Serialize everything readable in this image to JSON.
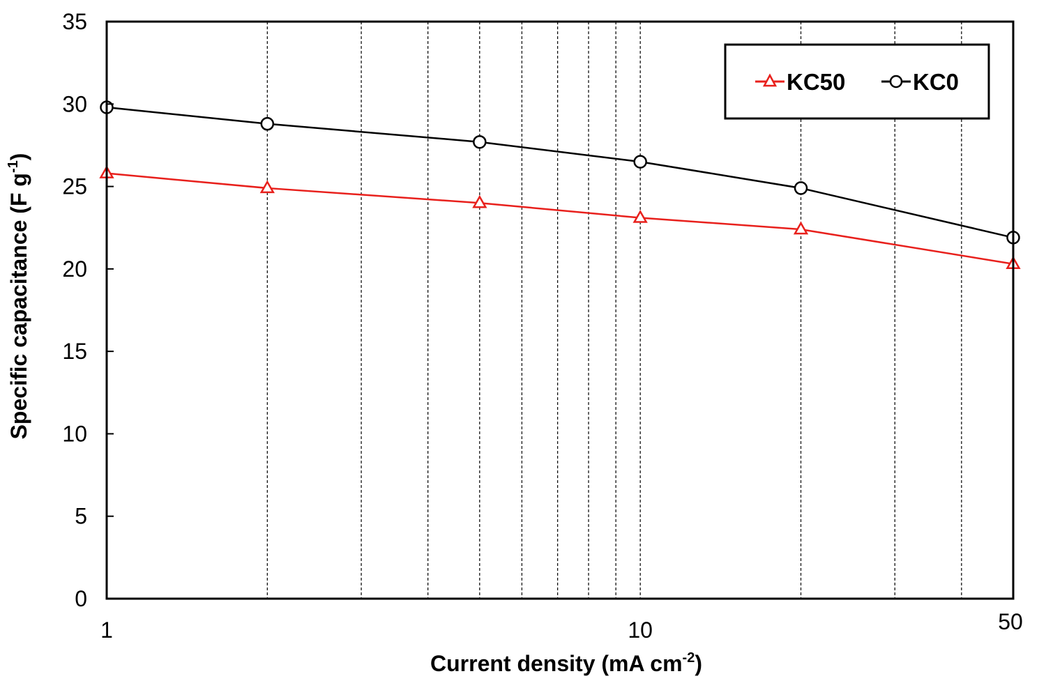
{
  "chart_data": {
    "type": "line",
    "xscale": "log",
    "xlim": [
      1,
      50
    ],
    "ylim": [
      0,
      35
    ],
    "yticks": [
      0,
      5,
      10,
      15,
      20,
      25,
      30,
      35
    ],
    "xtick_labels": [
      "1",
      "10",
      "50"
    ],
    "xtick_values": [
      1,
      10,
      50
    ],
    "gridlines_x": [
      2,
      3,
      4,
      5,
      6,
      7,
      8,
      9,
      20,
      30,
      40
    ],
    "grid": "vertical-dashed",
    "xlabel": "Current density (mA cm",
    "xlabel_sup": "-2",
    "xlabel_end": ")",
    "ylabel": "Specific capacitance  (F g",
    "ylabel_sup": "-1",
    "ylabel_end": ")",
    "legend_position": "top-right",
    "series": [
      {
        "name": "KC50",
        "color": "#e8201c",
        "marker": "triangle",
        "x": [
          1,
          2,
          5,
          10,
          20,
          50
        ],
        "y": [
          25.8,
          24.9,
          24.0,
          23.1,
          22.4,
          20.3
        ]
      },
      {
        "name": "KC0",
        "color": "#000000",
        "marker": "circle",
        "x": [
          1,
          2,
          5,
          10,
          20,
          50
        ],
        "y": [
          29.8,
          28.8,
          27.7,
          26.5,
          24.9,
          21.9
        ]
      }
    ]
  }
}
